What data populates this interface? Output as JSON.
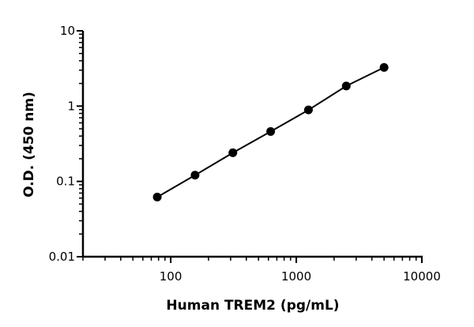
{
  "chart_data": {
    "type": "line",
    "title": "",
    "xlabel": "Human TREM2 (pg/mL)",
    "ylabel": "O.D. (450 nm)",
    "xscale": "log",
    "yscale": "log",
    "xlim": [
      20,
      10000
    ],
    "ylim": [
      0.01,
      10
    ],
    "xticks": [
      {
        "value": 100,
        "label": "100"
      },
      {
        "value": 1000,
        "label": "1000"
      },
      {
        "value": 10000,
        "label": "10000"
      }
    ],
    "yticks": [
      {
        "value": 0.01,
        "label": "0.01"
      },
      {
        "value": 0.1,
        "label": "0.1"
      },
      {
        "value": 1,
        "label": "1"
      },
      {
        "value": 10,
        "label": "10"
      }
    ],
    "grid": false,
    "series": [
      {
        "color": "#000000",
        "marker": "circle",
        "x": [
          78.125,
          156.25,
          312.5,
          625,
          1250,
          2500,
          5000
        ],
        "y": [
          0.062,
          0.121,
          0.24,
          0.46,
          0.89,
          1.85,
          3.26
        ]
      }
    ]
  }
}
